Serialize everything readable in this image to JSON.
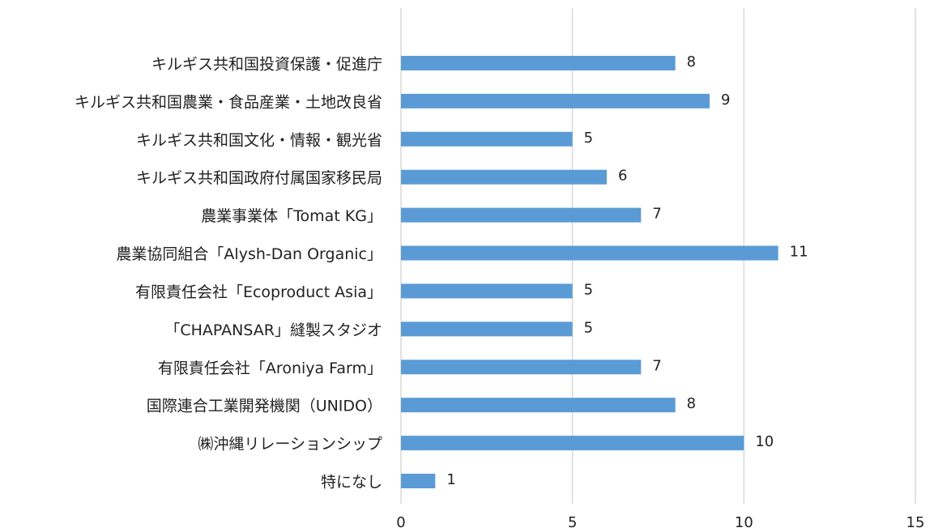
{
  "chart_data": {
    "type": "bar",
    "orientation": "horizontal",
    "categories": [
      "キルギス共和国投資保護・促進庁",
      "キルギス共和国農業・食品産業・土地改良省",
      "キルギス共和国文化・情報・観光省",
      "キルギス共和国政府付属国家移民局",
      "農業事業体「Tomat KG」",
      "農業協同組合「Alysh-Dan Organic」",
      "有限責任会社「Ecoproduct Asia」",
      "「CHAPANSAR」縫製スタジオ",
      "有限責任会社「Aroniya Farm」",
      "国際連合工業開発機関（UNIDO）",
      "㈱沖縄リレーションシップ",
      "特になし"
    ],
    "values": [
      8,
      9,
      5,
      6,
      7,
      11,
      5,
      5,
      7,
      8,
      10,
      1
    ],
    "color": "#5b9bd5",
    "xlim": [
      0,
      15
    ],
    "xticks": [
      0,
      5,
      10,
      15
    ],
    "grid": true
  }
}
